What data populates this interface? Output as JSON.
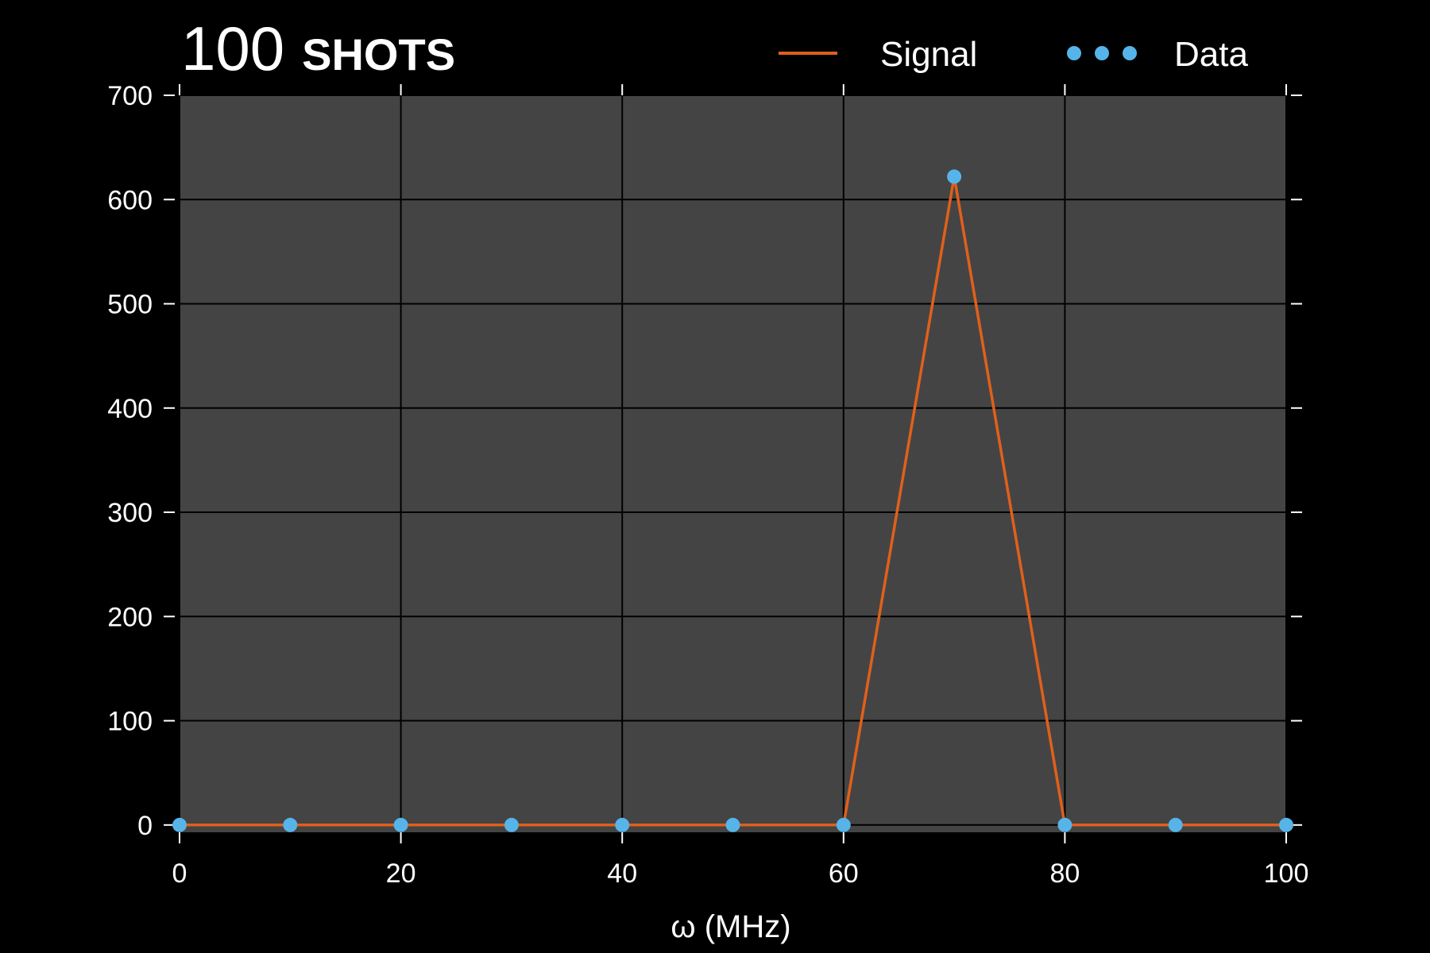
{
  "title": {
    "number": "100",
    "word": "SHOTS"
  },
  "colors": {
    "background": "#000000",
    "plot_background": "#444444",
    "grid": "#000000",
    "text": "#ffffff",
    "signal": "#e0601a",
    "data": "#56b4e9"
  },
  "chart_data": {
    "type": "line",
    "title": "100 SHOTS",
    "xlabel": "ω (MHz)",
    "ylabel": "",
    "xlim": [
      0,
      100
    ],
    "ylim": [
      -7,
      700
    ],
    "xticks": [
      0,
      20,
      40,
      60,
      80,
      100
    ],
    "yticks": [
      0,
      100,
      200,
      300,
      400,
      500,
      600,
      700
    ],
    "grid": true,
    "legend_position": "top-right",
    "series": [
      {
        "name": "Signal",
        "style": "line",
        "x": [
          0,
          10,
          20,
          30,
          40,
          50,
          60,
          70,
          80,
          90,
          100
        ],
        "values": [
          0,
          0,
          0,
          0,
          0,
          0,
          0,
          622,
          0,
          0,
          0
        ]
      },
      {
        "name": "Data",
        "style": "points",
        "x": [
          0,
          10,
          20,
          30,
          40,
          50,
          60,
          70,
          80,
          90,
          100
        ],
        "values": [
          0,
          0,
          0,
          0,
          0,
          0,
          0,
          622,
          0,
          0,
          0
        ]
      }
    ]
  }
}
